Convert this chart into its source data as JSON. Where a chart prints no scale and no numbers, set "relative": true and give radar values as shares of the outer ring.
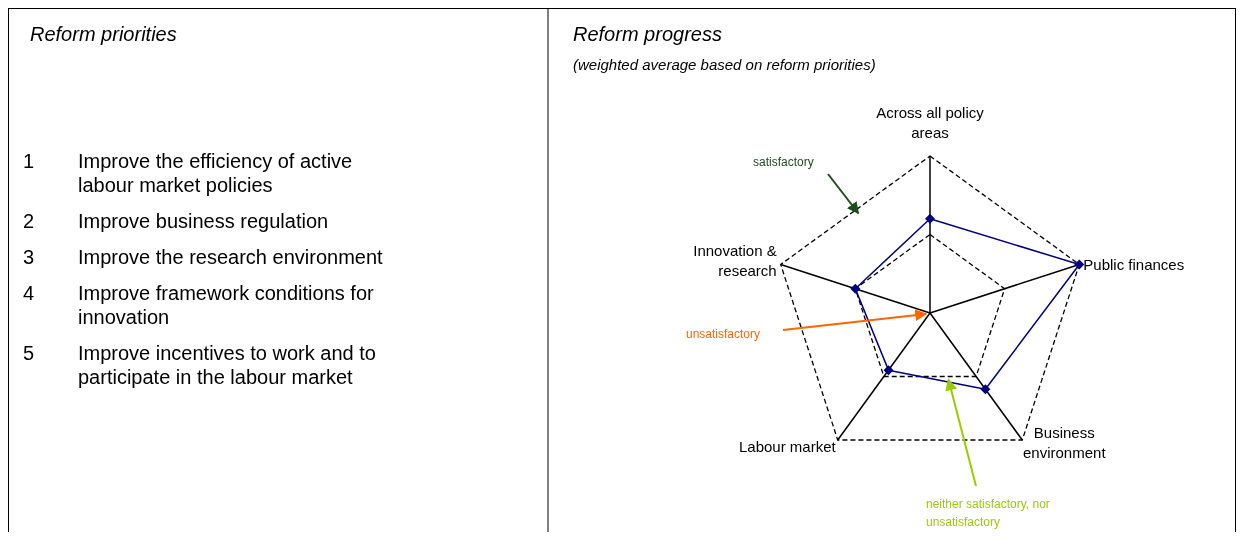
{
  "chart_data": [
    {
      "type": "other",
      "title": "Reform priorities",
      "annotations": [
        "1 Improve the efficiency of active labour market policies",
        "2 Improve business regulation",
        "3 Improve the research environment",
        "4 Improve framework conditions for innovation",
        "5 Improve incentives to work and to participate in the labour market"
      ]
    },
    {
      "type": "radar",
      "title": "Reform progress",
      "subtitle": "(weighted average based on reform priorities)",
      "categories": [
        "Across all policy areas",
        "Public finances",
        "Business environment",
        "Labour market",
        "Innovation & research"
      ],
      "series": [
        {
          "color": "#000080",
          "values": [
            0.6,
            1,
            0.6,
            0.45,
            0.5
          ]
        }
      ],
      "relative": true,
      "annotations": [
        "unsatisfactory",
        "neither satisfactory, nor unsatisfactory",
        "satisfactory"
      ],
      "grid": true,
      "marker": "diamond",
      "line_style": "solid"
    }
  ]
}
